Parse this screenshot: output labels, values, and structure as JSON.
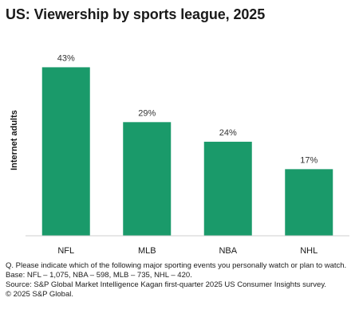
{
  "title": "US: Viewership by sports league, 2025",
  "chart_data": {
    "type": "bar",
    "title": "US: Viewership by sports league, 2025",
    "ylabel": "Internet adults",
    "xlabel": "",
    "categories": [
      "NFL",
      "MLB",
      "NBA",
      "NHL"
    ],
    "values": [
      43,
      29,
      24,
      17
    ],
    "value_labels": [
      "43%",
      "29%",
      "24%",
      "17%"
    ],
    "ylim": [
      0,
      50
    ],
    "grid": false,
    "bar_color": "#1a9a6a"
  },
  "footnotes": {
    "question": "Q. Please indicate which of the following major sporting events you personally watch or plan to watch.",
    "base": "Base: NFL – 1,075, NBA – 598, MLB – 735, NHL – 420.",
    "source": "Source: S&P Global Market Intelligence Kagan first-quarter 2025 US Consumer Insights survey.",
    "copyright": "© 2025 S&P Global."
  }
}
